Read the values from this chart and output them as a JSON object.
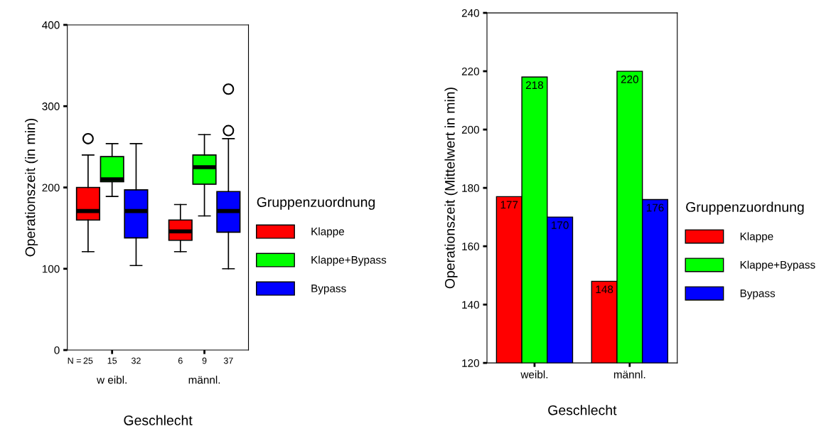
{
  "chart_data": [
    {
      "type": "box",
      "categories": [
        "w eibl.",
        "männl."
      ],
      "xlabel": "Geschlecht",
      "ylabel": "Operationszeit (in min)",
      "legend_title": "Gruppenzuordnung",
      "legend": "right",
      "ylim": [
        0,
        400
      ],
      "yticks": [
        0,
        100,
        200,
        300,
        400
      ],
      "grid": false,
      "annotations": [
        "N =",
        "25",
        "15",
        "32",
        "6",
        "9",
        "37"
      ],
      "series": [
        {
          "name": "Klappe",
          "color": "#ff0000",
          "boxes": [
            {
              "low": 121,
              "q1": 160,
              "median": 171,
              "q3": 200,
              "high": 240,
              "outliers": [
                260
              ]
            },
            {
              "low": 121,
              "q1": 135,
              "median": 146,
              "q3": 160,
              "high": 179
            }
          ]
        },
        {
          "name": "Klappe+Bypass",
          "color": "#00ff00",
          "boxes": [
            {
              "low": 189,
              "q1": 207,
              "median": 210,
              "q3": 238,
              "high": 254
            },
            {
              "low": 165,
              "q1": 204,
              "median": 225,
              "q3": 240,
              "high": 265
            }
          ]
        },
        {
          "name": "Bypass",
          "color": "#0000ff",
          "boxes": [
            {
              "low": 104,
              "q1": 138,
              "median": 171,
              "q3": 197,
              "high": 254
            },
            {
              "low": 100,
              "q1": 145,
              "median": 171,
              "q3": 195,
              "high": 260,
              "outliers": [
                270,
                321
              ]
            }
          ]
        }
      ]
    },
    {
      "type": "bar",
      "categories": [
        "weibl.",
        "männl."
      ],
      "xlabel": "Geschlecht",
      "ylabel": "Operationszeit (Mittelwert in min)",
      "legend_title": "Gruppenzuordnung",
      "legend": "right",
      "ylim": [
        120,
        240
      ],
      "yticks": [
        120,
        140,
        160,
        180,
        200,
        220,
        240
      ],
      "grid": false,
      "data_labels": true,
      "series": [
        {
          "name": "Klappe",
          "color": "#ff0000",
          "values": [
            177,
            148
          ]
        },
        {
          "name": "Klappe+Bypass",
          "color": "#00ff00",
          "values": [
            218,
            220
          ]
        },
        {
          "name": "Bypass",
          "color": "#0000ff",
          "values": [
            170,
            176
          ]
        }
      ]
    }
  ]
}
